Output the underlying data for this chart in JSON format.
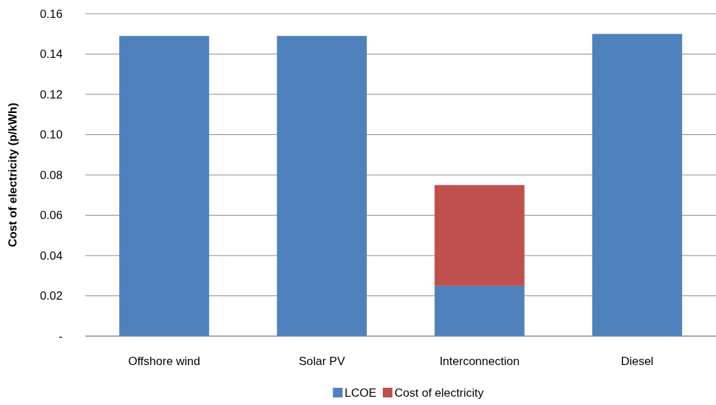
{
  "chart_data": {
    "type": "bar",
    "ylabel": "Cost of electricity (p/kWh)",
    "categories": [
      "Offshore wind",
      "Solar PV",
      "Interconnection",
      "Diesel"
    ],
    "series": [
      {
        "name": "LCOE",
        "color": "#4f81bd",
        "values": [
          0.149,
          0.149,
          0.025,
          0.15
        ]
      },
      {
        "name": "Cost of electricity",
        "color": "#c0504d",
        "values": [
          null,
          null,
          0.05,
          null
        ]
      }
    ],
    "stacked": true,
    "ylim": [
      0,
      0.16
    ],
    "yticks": [
      {
        "value": 0,
        "label": "-"
      },
      {
        "value": 0.02,
        "label": "0.02"
      },
      {
        "value": 0.04,
        "label": "0.04"
      },
      {
        "value": 0.06,
        "label": "0.06"
      },
      {
        "value": 0.08,
        "label": "0.08"
      },
      {
        "value": 0.1,
        "label": "0.10"
      },
      {
        "value": 0.12,
        "label": "0.12"
      },
      {
        "value": 0.14,
        "label": "0.14"
      },
      {
        "value": 0.16,
        "label": "0.16"
      }
    ],
    "grid": "y",
    "legend": "bottom"
  }
}
